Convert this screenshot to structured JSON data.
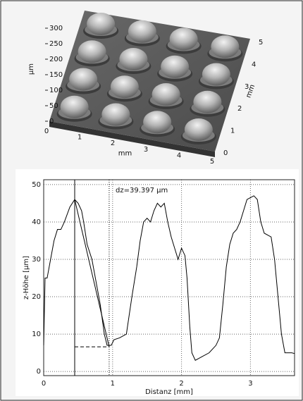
{
  "chart_data": [
    {
      "type": "surface",
      "zlabel": "µm",
      "zlim": [
        0,
        300
      ],
      "zticks": [
        0,
        50,
        100,
        150,
        200,
        250,
        300
      ],
      "xlabel": "mm",
      "xlim": [
        0,
        5
      ],
      "xticks": [
        0,
        1,
        2,
        3,
        4,
        5
      ],
      "ylabel": "mm",
      "ylim": [
        0,
        5
      ],
      "yticks": [
        0,
        1,
        2,
        3,
        4,
        5
      ]
    },
    {
      "type": "line",
      "annotation": "dz=39.397 µm",
      "xlabel": "Distanz [mm]",
      "ylabel": "z-Höhe [µm]",
      "xlim": [
        0,
        3.64
      ],
      "xticks": [
        0,
        1,
        2,
        3
      ],
      "ylim": [
        -1.1,
        51.3
      ],
      "yticks": [
        0,
        10,
        20,
        30,
        40,
        50
      ],
      "grid": true,
      "color": "#000000",
      "x": [
        0,
        0.02,
        0.05,
        0.1,
        0.15,
        0.2,
        0.25,
        0.3,
        0.38,
        0.45,
        0.5,
        0.55,
        0.58,
        0.63,
        0.7,
        0.75,
        0.82,
        0.88,
        0.92,
        0.98,
        1.02,
        1.1,
        1.2,
        1.28,
        1.35,
        1.4,
        1.45,
        1.5,
        1.55,
        1.6,
        1.65,
        1.7,
        1.75,
        1.8,
        1.85,
        1.9,
        1.95,
        2.0,
        2.05,
        2.08,
        2.12,
        2.15,
        2.2,
        2.3,
        2.4,
        2.5,
        2.55,
        2.6,
        2.65,
        2.7,
        2.75,
        2.8,
        2.85,
        2.9,
        2.95,
        3.0,
        3.05,
        3.1,
        3.15,
        3.2,
        3.3,
        3.35,
        3.4,
        3.45,
        3.5,
        3.6,
        3.64
      ],
      "values": [
        7,
        25,
        25,
        30,
        35,
        38,
        38,
        40,
        44,
        46,
        45,
        43,
        40,
        34,
        30,
        25,
        18,
        10,
        7,
        7,
        8.5,
        9,
        10,
        20,
        28,
        35,
        40,
        41,
        40,
        43,
        45,
        44,
        45,
        40,
        36,
        33,
        30,
        33,
        31,
        25,
        12,
        5,
        3,
        4,
        5,
        7,
        9,
        18,
        28,
        34,
        37,
        38,
        40,
        43,
        46,
        46.5,
        47,
        46,
        40,
        37,
        36,
        30,
        20,
        10,
        5,
        5,
        4.8
      ],
      "cursor_x": [
        0.45,
        0.95
      ],
      "cursor_y": [
        46,
        6.6
      ]
    }
  ]
}
